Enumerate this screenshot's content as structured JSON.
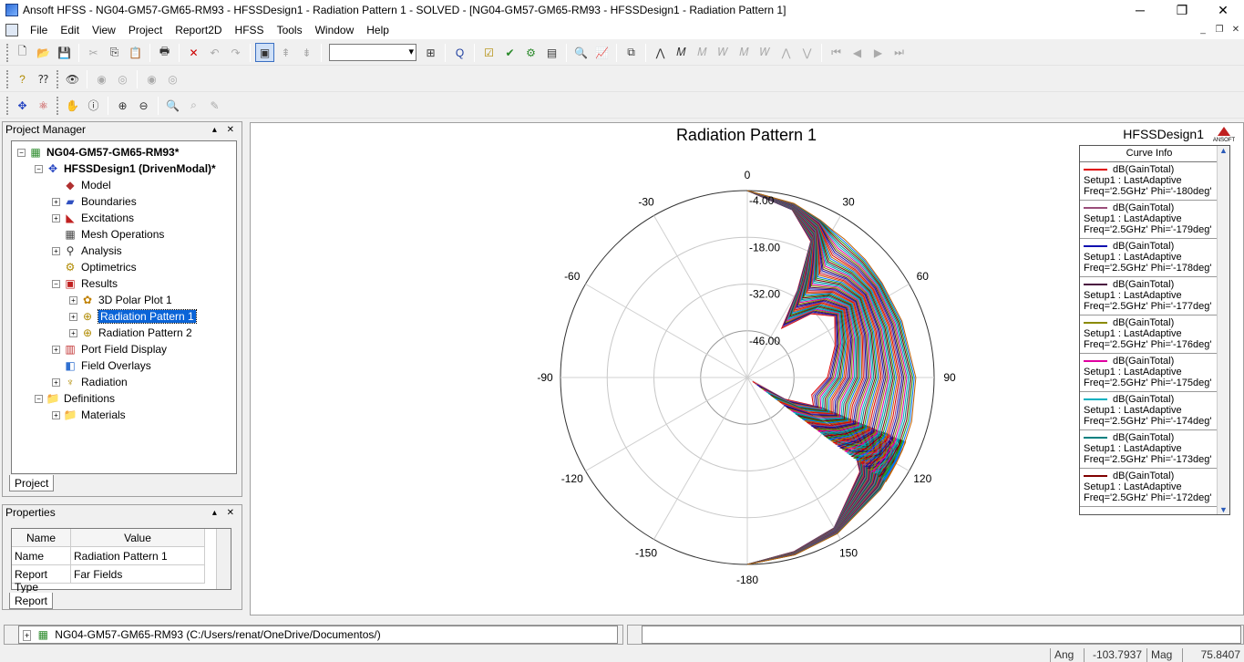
{
  "window": {
    "title": "Ansoft HFSS  - NG04-GM57-GM65-RM93 - HFSSDesign1 - Radiation Pattern 1 - SOLVED - [NG04-GM57-GM65-RM93 - HFSSDesign1 - Radiation Pattern 1]"
  },
  "menu": [
    "File",
    "Edit",
    "View",
    "Project",
    "Report2D",
    "HFSS",
    "Tools",
    "Window",
    "Help"
  ],
  "project_manager": {
    "title": "Project Manager",
    "tree": [
      {
        "label": "NG04-GM57-GM65-RM93*",
        "indent": 0,
        "bold": true,
        "expander": "−",
        "icon": "project-icon"
      },
      {
        "label": "HFSSDesign1 (DrivenModal)*",
        "indent": 1,
        "bold": true,
        "expander": "−",
        "icon": "design-icon"
      },
      {
        "label": "Model",
        "indent": 2,
        "expander": "",
        "icon": "model-icon"
      },
      {
        "label": "Boundaries",
        "indent": 2,
        "expander": "+",
        "icon": "boundaries-icon"
      },
      {
        "label": "Excitations",
        "indent": 2,
        "expander": "+",
        "icon": "excitations-icon"
      },
      {
        "label": "Mesh Operations",
        "indent": 2,
        "expander": "",
        "icon": "mesh-icon"
      },
      {
        "label": "Analysis",
        "indent": 2,
        "expander": "+",
        "icon": "analysis-icon"
      },
      {
        "label": "Optimetrics",
        "indent": 2,
        "expander": "",
        "icon": "optimetrics-icon"
      },
      {
        "label": "Results",
        "indent": 2,
        "expander": "−",
        "icon": "results-icon"
      },
      {
        "label": "3D Polar Plot 1",
        "indent": 3,
        "expander": "+",
        "icon": "polar-3d-icon"
      },
      {
        "label": "Radiation Pattern 1",
        "indent": 3,
        "expander": "+",
        "icon": "radiation-pattern-icon",
        "selected": true
      },
      {
        "label": "Radiation Pattern 2",
        "indent": 3,
        "expander": "+",
        "icon": "radiation-pattern-icon"
      },
      {
        "label": "Port Field Display",
        "indent": 2,
        "expander": "+",
        "icon": "port-field-icon"
      },
      {
        "label": "Field Overlays",
        "indent": 2,
        "expander": "",
        "icon": "field-overlays-icon"
      },
      {
        "label": "Radiation",
        "indent": 2,
        "expander": "+",
        "icon": "radiation-icon"
      },
      {
        "label": "Definitions",
        "indent": 1,
        "expander": "−",
        "icon": "folder-icon"
      },
      {
        "label": "Materials",
        "indent": 2,
        "expander": "+",
        "icon": "folder-icon"
      }
    ],
    "tab": "Project"
  },
  "properties": {
    "title": "Properties",
    "headers": [
      "Name",
      "Value"
    ],
    "rows": [
      [
        "Name",
        "Radiation Pattern 1"
      ],
      [
        "Report Type",
        "Far Fields"
      ]
    ],
    "tab": "Report"
  },
  "plot": {
    "title": "Radiation Pattern 1",
    "design_label": "HFSSDesign1",
    "logo_text": "ANSOFT",
    "curve_info_title": "Curve Info",
    "curves": [
      {
        "name": "dB(GainTotal)",
        "setup": "Setup1 : LastAdaptive",
        "freq": "Freq='2.5GHz' Phi='-180deg'",
        "color": "#e00000"
      },
      {
        "name": "dB(GainTotal)",
        "setup": "Setup1 : LastAdaptive",
        "freq": "Freq='2.5GHz' Phi='-179deg'",
        "color": "#9a4d7a"
      },
      {
        "name": "dB(GainTotal)",
        "setup": "Setup1 : LastAdaptive",
        "freq": "Freq='2.5GHz' Phi='-178deg'",
        "color": "#1010b0"
      },
      {
        "name": "dB(GainTotal)",
        "setup": "Setup1 : LastAdaptive",
        "freq": "Freq='2.5GHz' Phi='-177deg'",
        "color": "#4a1040"
      },
      {
        "name": "dB(GainTotal)",
        "setup": "Setup1 : LastAdaptive",
        "freq": "Freq='2.5GHz' Phi='-176deg'",
        "color": "#8a8a00"
      },
      {
        "name": "dB(GainTotal)",
        "setup": "Setup1 : LastAdaptive",
        "freq": "Freq='2.5GHz' Phi='-175deg'",
        "color": "#e000a0"
      },
      {
        "name": "dB(GainTotal)",
        "setup": "Setup1 : LastAdaptive",
        "freq": "Freq='2.5GHz' Phi='-174deg'",
        "color": "#00b0c0"
      },
      {
        "name": "dB(GainTotal)",
        "setup": "Setup1 : LastAdaptive",
        "freq": "Freq='2.5GHz' Phi='-173deg'",
        "color": "#008080"
      },
      {
        "name": "dB(GainTotal)",
        "setup": "Setup1 : LastAdaptive",
        "freq": "Freq='2.5GHz' Phi='-172deg'",
        "color": "#800000"
      }
    ]
  },
  "chart_data": {
    "type": "polar",
    "title": "Radiation Pattern 1",
    "angle_labels": [
      "0",
      "30",
      "60",
      "90",
      "120",
      "150",
      "-180",
      "-150",
      "-120",
      "-90",
      "-60",
      "-30"
    ],
    "radial_labels": [
      "-4.00",
      "-18.00",
      "-32.00",
      "-46.00"
    ],
    "rlim": [
      -60,
      -4
    ],
    "series_colors": [
      "#e00000",
      "#9a4d7a",
      "#1010b0",
      "#4a1040",
      "#8a8a00",
      "#e000a0",
      "#00b0c0",
      "#008080",
      "#800000",
      "#1a9c1a",
      "#0070ff",
      "#c06000"
    ],
    "envelope_outer": [
      [
        0,
        -4
      ],
      [
        15,
        -6
      ],
      [
        30,
        -9
      ],
      [
        45,
        -10
      ],
      [
        60,
        -11
      ],
      [
        75,
        -10.5
      ],
      [
        90,
        -9.5
      ],
      [
        105,
        -9
      ],
      [
        120,
        -8.5
      ],
      [
        135,
        -7.5
      ],
      [
        150,
        -6
      ],
      [
        165,
        -5
      ],
      [
        180,
        -4
      ]
    ],
    "envelope_inner": [
      [
        0,
        -4
      ],
      [
        15,
        -8
      ],
      [
        25,
        -15
      ],
      [
        30,
        -30
      ],
      [
        35,
        -42
      ],
      [
        45,
        -33
      ],
      [
        55,
        -28
      ],
      [
        70,
        -32
      ],
      [
        90,
        -36
      ],
      [
        105,
        -40
      ],
      [
        115,
        -38
      ],
      [
        120,
        -30
      ],
      [
        125,
        -46
      ],
      [
        127,
        -58
      ],
      [
        120,
        -47
      ],
      [
        112,
        -36
      ],
      [
        118,
        -25
      ],
      [
        130,
        -16
      ],
      [
        150,
        -8
      ],
      [
        165,
        -6
      ],
      [
        180,
        -4
      ]
    ]
  },
  "statusbar": {
    "project_path": "NG04-GM57-GM65-RM93 (C:/Users/renat/OneDrive/Documentos/)",
    "ang_label": "Ang",
    "ang_value": "-103.7937",
    "mag_label": "Mag",
    "mag_value": "75.8407"
  }
}
